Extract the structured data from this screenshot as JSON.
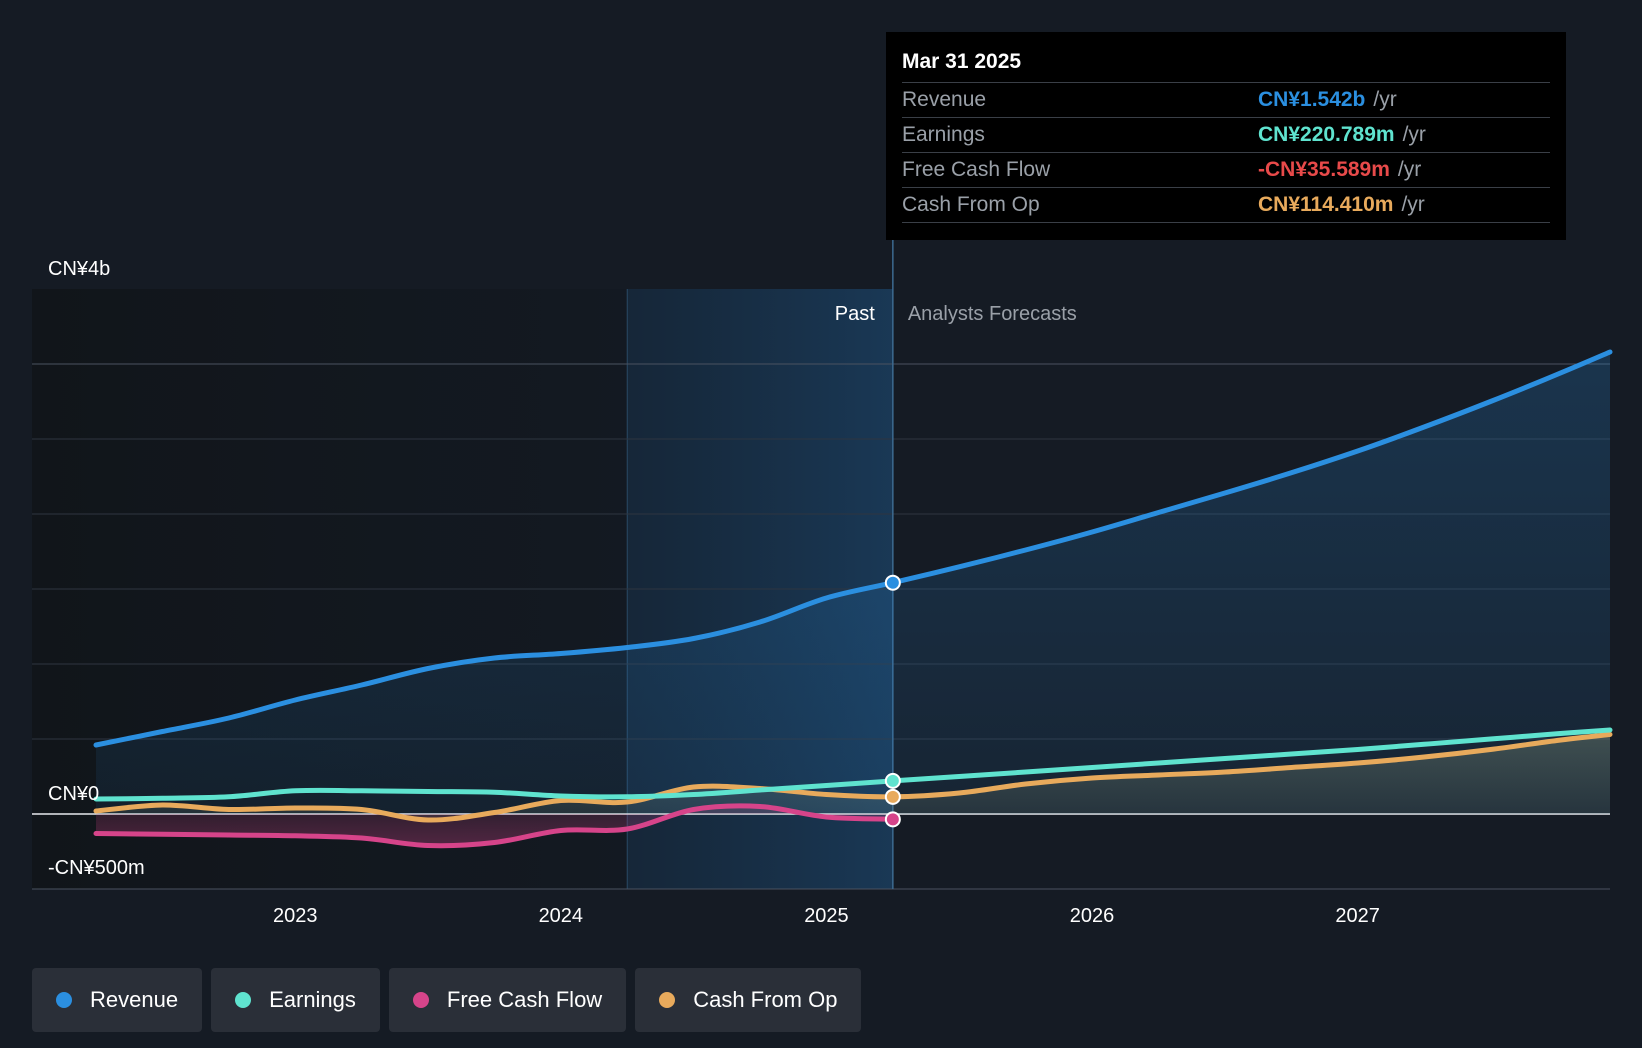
{
  "chart_data": {
    "type": "line",
    "x_range": [
      2022.25,
      2027.95
    ],
    "ylim": [
      -500,
      3500
    ],
    "y_tick_labels": [
      {
        "value": 3500,
        "label": "CN¥4b"
      },
      {
        "value": 0,
        "label": "CN¥0"
      },
      {
        "value": -500,
        "label": "-CN¥500m"
      }
    ],
    "x_ticks": [
      2023,
      2024,
      2025,
      2026,
      2027
    ],
    "x_tick_labels": [
      "2023",
      "2024",
      "2025",
      "2026",
      "2027"
    ],
    "past_label": "Past",
    "forecast_label": "Analysts Forecasts",
    "divider_x": 2025.25,
    "highlight_start": 2024.25,
    "series": [
      {
        "name": "Revenue",
        "color": "#2b8fe0",
        "forecast": true,
        "x": [
          2022.25,
          2022.5,
          2022.75,
          2023.0,
          2023.25,
          2023.5,
          2023.75,
          2024.0,
          2024.25,
          2024.5,
          2024.75,
          2025.0,
          2025.25,
          2025.5,
          2025.75,
          2026.0,
          2026.25,
          2026.5,
          2026.75,
          2027.0,
          2027.25,
          2027.5,
          2027.75,
          2027.95
        ],
        "values": [
          460,
          550,
          640,
          760,
          860,
          970,
          1040,
          1070,
          1110,
          1170,
          1280,
          1440,
          1542,
          1648,
          1760,
          1880,
          2010,
          2140,
          2275,
          2420,
          2580,
          2750,
          2930,
          3080
        ]
      },
      {
        "name": "Earnings",
        "color": "#5fe3cf",
        "forecast": true,
        "x": [
          2022.25,
          2022.5,
          2022.75,
          2023.0,
          2023.25,
          2023.5,
          2023.75,
          2024.0,
          2024.25,
          2024.5,
          2024.75,
          2025.0,
          2025.25,
          2025.5,
          2025.75,
          2026.0,
          2026.25,
          2026.5,
          2026.75,
          2027.0,
          2027.25,
          2027.5,
          2027.75,
          2027.95
        ],
        "values": [
          100,
          105,
          115,
          155,
          155,
          150,
          145,
          120,
          115,
          130,
          160,
          190,
          220.789,
          250,
          280,
          310,
          340,
          370,
          400,
          430,
          465,
          500,
          535,
          560
        ]
      },
      {
        "name": "Free Cash Flow",
        "color": "#d6448a",
        "forecast": false,
        "x": [
          2022.25,
          2022.5,
          2022.75,
          2023.0,
          2023.25,
          2023.5,
          2023.75,
          2024.0,
          2024.25,
          2024.5,
          2024.75,
          2025.0,
          2025.25
        ],
        "values": [
          -130,
          -135,
          -140,
          -145,
          -160,
          -210,
          -190,
          -110,
          -100,
          30,
          50,
          -20,
          -35.589
        ]
      },
      {
        "name": "Cash From Op",
        "color": "#e8aa5c",
        "forecast": true,
        "x": [
          2022.25,
          2022.5,
          2022.75,
          2023.0,
          2023.25,
          2023.5,
          2023.75,
          2024.0,
          2024.25,
          2024.5,
          2024.75,
          2025.0,
          2025.25,
          2025.5,
          2025.75,
          2026.0,
          2026.25,
          2026.5,
          2026.75,
          2027.0,
          2027.25,
          2027.5,
          2027.75,
          2027.95
        ],
        "values": [
          20,
          60,
          30,
          40,
          30,
          -40,
          10,
          90,
          80,
          180,
          170,
          130,
          114.41,
          140,
          200,
          240,
          260,
          280,
          310,
          340,
          380,
          430,
          490,
          530
        ]
      }
    ],
    "highlight_x": 2025.25
  },
  "tooltip": {
    "date": "Mar 31 2025",
    "rows": [
      {
        "label": "Revenue",
        "value": "CN¥1.542b",
        "unit": "/yr",
        "color": "#2b8fe0"
      },
      {
        "label": "Earnings",
        "value": "CN¥220.789m",
        "unit": "/yr",
        "color": "#5fe3cf"
      },
      {
        "label": "Free Cash Flow",
        "value": "-CN¥35.589m",
        "unit": "/yr",
        "color": "#e84a4a"
      },
      {
        "label": "Cash From Op",
        "value": "CN¥114.410m",
        "unit": "/yr",
        "color": "#e8aa5c"
      }
    ]
  },
  "legend": [
    {
      "label": "Revenue",
      "color": "#2b8fe0"
    },
    {
      "label": "Earnings",
      "color": "#5fe3cf"
    },
    {
      "label": "Free Cash Flow",
      "color": "#d6448a"
    },
    {
      "label": "Cash From Op",
      "color": "#e8aa5c"
    }
  ]
}
